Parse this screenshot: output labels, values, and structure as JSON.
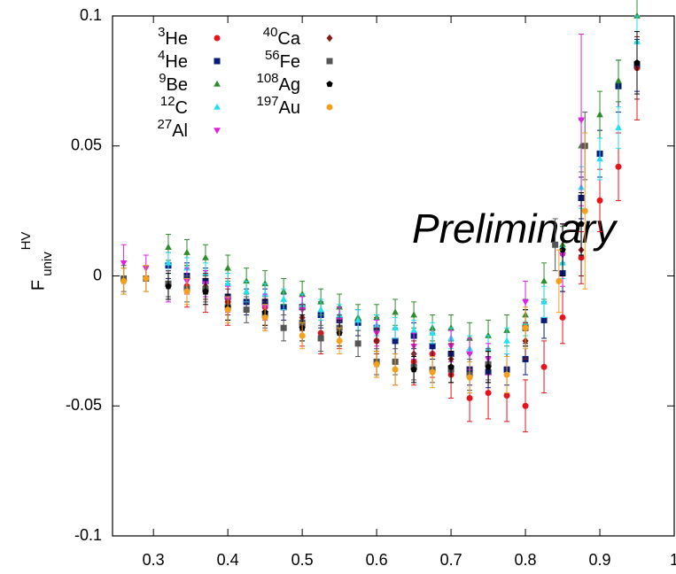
{
  "chart_data": {
    "type": "scatter",
    "ylabel": "F",
    "ylabel_sub": "univ",
    "ylabel_sup": "HV",
    "annotation": "Preliminary",
    "annotation_color": "#1aaa3a",
    "xlim": [
      0.245,
      1.0
    ],
    "ylim": [
      -0.1,
      0.1
    ],
    "xticks": [
      0.3,
      0.4,
      0.5,
      0.6,
      0.7,
      0.8,
      0.9,
      1
    ],
    "yticks": [
      -0.1,
      -0.05,
      0,
      0.05,
      0.1
    ],
    "grid": false,
    "legend": "top-left",
    "series": [
      {
        "name": "He",
        "mass_number": "3",
        "color": "#e8141c",
        "marker": "circle",
        "x": [
          0.345,
          0.37,
          0.4,
          0.45,
          0.5,
          0.525,
          0.55,
          0.6,
          0.625,
          0.65,
          0.675,
          0.7,
          0.725,
          0.75,
          0.775,
          0.8,
          0.825,
          0.85,
          0.875,
          0.9,
          0.925,
          0.95
        ],
        "values": [
          -0.004,
          -0.006,
          -0.01,
          -0.012,
          -0.019,
          -0.022,
          -0.02,
          -0.025,
          -0.033,
          -0.033,
          -0.03,
          -0.038,
          -0.047,
          -0.045,
          -0.046,
          -0.05,
          -0.035,
          -0.016,
          0.007,
          0.029,
          0.042,
          0.08
        ],
        "errors": [
          0.008,
          0.008,
          0.009,
          0.009,
          0.008,
          0.008,
          0.008,
          0.009,
          0.009,
          0.009,
          0.009,
          0.009,
          0.009,
          0.01,
          0.01,
          0.01,
          0.01,
          0.01,
          0.01,
          0.012,
          0.013,
          0.02
        ]
      },
      {
        "name": "He",
        "mass_number": "4",
        "color": "#0a1a7a",
        "marker": "square",
        "x": [
          0.32,
          0.345,
          0.37,
          0.4,
          0.425,
          0.45,
          0.475,
          0.5,
          0.525,
          0.55,
          0.575,
          0.6,
          0.625,
          0.65,
          0.675,
          0.7,
          0.725,
          0.75,
          0.775,
          0.8,
          0.825,
          0.85,
          0.875,
          0.9,
          0.925,
          0.95
        ],
        "values": [
          0.004,
          0.0,
          -0.002,
          -0.008,
          -0.01,
          -0.01,
          -0.012,
          -0.012,
          -0.015,
          -0.017,
          -0.018,
          -0.02,
          -0.025,
          -0.023,
          -0.027,
          -0.03,
          -0.036,
          -0.037,
          -0.036,
          -0.032,
          -0.017,
          0.001,
          0.03,
          0.047,
          0.073,
          0.081
        ],
        "errors": [
          0.005,
          0.005,
          0.005,
          0.005,
          0.005,
          0.005,
          0.005,
          0.005,
          0.005,
          0.005,
          0.005,
          0.005,
          0.005,
          0.005,
          0.005,
          0.005,
          0.006,
          0.006,
          0.006,
          0.006,
          0.007,
          0.007,
          0.008,
          0.009,
          0.01,
          0.01
        ]
      },
      {
        "name": "Be",
        "mass_number": "9",
        "color": "#2e8b2e",
        "marker": "triangle",
        "x": [
          0.32,
          0.345,
          0.37,
          0.4,
          0.425,
          0.45,
          0.475,
          0.5,
          0.525,
          0.55,
          0.575,
          0.6,
          0.625,
          0.65,
          0.675,
          0.7,
          0.725,
          0.75,
          0.775,
          0.8,
          0.825,
          0.85,
          0.875,
          0.9,
          0.925,
          0.95
        ],
        "values": [
          0.011,
          0.009,
          0.007,
          0.003,
          -0.002,
          -0.003,
          -0.006,
          -0.007,
          -0.01,
          -0.012,
          -0.016,
          -0.016,
          -0.014,
          -0.015,
          -0.02,
          -0.02,
          -0.024,
          -0.023,
          -0.021,
          -0.015,
          -0.002,
          0.012,
          0.05,
          0.062,
          0.075,
          0.1
        ],
        "errors": [
          0.005,
          0.005,
          0.005,
          0.005,
          0.005,
          0.005,
          0.005,
          0.005,
          0.005,
          0.005,
          0.005,
          0.005,
          0.005,
          0.005,
          0.005,
          0.005,
          0.006,
          0.006,
          0.006,
          0.006,
          0.007,
          0.007,
          0.01,
          0.009,
          0.008,
          0.01
        ]
      },
      {
        "name": "C",
        "mass_number": "12",
        "color": "#22e0f0",
        "marker": "triangle",
        "x": [
          0.32,
          0.345,
          0.37,
          0.4,
          0.425,
          0.45,
          0.475,
          0.5,
          0.525,
          0.55,
          0.575,
          0.6,
          0.625,
          0.65,
          0.675,
          0.7,
          0.725,
          0.75,
          0.775,
          0.8,
          0.825,
          0.85,
          0.875,
          0.9,
          0.925,
          0.95
        ],
        "values": [
          0.005,
          0.003,
          0.001,
          -0.003,
          -0.006,
          -0.007,
          -0.009,
          -0.011,
          -0.013,
          -0.015,
          -0.017,
          -0.019,
          -0.02,
          -0.021,
          -0.022,
          -0.024,
          -0.028,
          -0.028,
          -0.025,
          -0.018,
          -0.01,
          0.005,
          0.034,
          0.045,
          0.057,
          0.09
        ],
        "errors": [
          0.004,
          0.004,
          0.004,
          0.004,
          0.004,
          0.004,
          0.004,
          0.004,
          0.004,
          0.004,
          0.004,
          0.004,
          0.004,
          0.004,
          0.004,
          0.004,
          0.005,
          0.005,
          0.005,
          0.005,
          0.006,
          0.006,
          0.008,
          0.008,
          0.008,
          0.01
        ]
      },
      {
        "name": "Al",
        "mass_number": "27",
        "color": "#e01ee8",
        "marker": "triangle-down",
        "x": [
          0.26,
          0.29,
          0.32,
          0.345,
          0.37,
          0.4,
          0.45,
          0.5,
          0.55,
          0.6,
          0.65,
          0.7,
          0.725,
          0.75,
          0.8,
          0.85,
          0.875
        ],
        "values": [
          0.005,
          0.003,
          -0.004,
          -0.002,
          -0.003,
          -0.009,
          -0.012,
          -0.013,
          -0.017,
          -0.022,
          -0.027,
          -0.027,
          -0.03,
          -0.032,
          -0.01,
          0.008,
          0.06
        ],
        "errors": [
          0.007,
          0.005,
          0.006,
          0.005,
          0.005,
          0.005,
          0.005,
          0.005,
          0.005,
          0.005,
          0.005,
          0.006,
          0.006,
          0.006,
          0.008,
          0.012,
          0.033
        ]
      },
      {
        "name": "Ca",
        "mass_number": "40",
        "color": "#8b1a1a",
        "marker": "diamond",
        "x": [
          0.32,
          0.37,
          0.4,
          0.45,
          0.5,
          0.55,
          0.6,
          0.65,
          0.7,
          0.75,
          0.8,
          0.875,
          0.95
        ],
        "values": [
          -0.003,
          -0.004,
          -0.01,
          -0.014,
          -0.016,
          -0.02,
          -0.025,
          -0.03,
          -0.032,
          -0.035,
          -0.025,
          0.01,
          0.08
        ],
        "errors": [
          0.005,
          0.005,
          0.005,
          0.005,
          0.005,
          0.005,
          0.005,
          0.005,
          0.006,
          0.006,
          0.007,
          0.01,
          0.012
        ]
      },
      {
        "name": "Fe",
        "mass_number": "56",
        "color": "#555555",
        "marker": "square",
        "x": [
          0.26,
          0.29,
          0.32,
          0.345,
          0.37,
          0.4,
          0.425,
          0.45,
          0.475,
          0.5,
          0.525,
          0.55,
          0.575,
          0.6,
          0.625,
          0.65,
          0.675,
          0.7,
          0.725,
          0.75,
          0.8,
          0.84,
          0.88
        ],
        "values": [
          -0.001,
          -0.001,
          -0.003,
          -0.005,
          -0.005,
          -0.012,
          -0.013,
          -0.015,
          -0.02,
          -0.018,
          -0.024,
          -0.02,
          -0.026,
          -0.033,
          -0.033,
          -0.035,
          -0.036,
          -0.036,
          -0.038,
          -0.034,
          -0.02,
          0.012,
          0.05
        ],
        "errors": [
          0.005,
          0.005,
          0.005,
          0.005,
          0.005,
          0.005,
          0.005,
          0.005,
          0.005,
          0.005,
          0.005,
          0.005,
          0.005,
          0.005,
          0.005,
          0.005,
          0.005,
          0.005,
          0.006,
          0.006,
          0.007,
          0.01,
          0.013
        ]
      },
      {
        "name": "Ag",
        "mass_number": "108",
        "color": "#000000",
        "marker": "pentagon",
        "x": [
          0.26,
          0.32,
          0.37,
          0.4,
          0.45,
          0.5,
          0.55,
          0.6,
          0.65,
          0.7,
          0.75,
          0.8,
          0.85,
          0.875,
          0.95
        ],
        "values": [
          -0.002,
          -0.004,
          -0.006,
          -0.012,
          -0.014,
          -0.02,
          -0.022,
          -0.034,
          -0.036,
          -0.035,
          -0.035,
          -0.02,
          0.01,
          0.02,
          0.082
        ],
        "errors": [
          0.005,
          0.005,
          0.005,
          0.005,
          0.005,
          0.005,
          0.005,
          0.005,
          0.005,
          0.006,
          0.006,
          0.007,
          0.01,
          0.012,
          0.012
        ]
      },
      {
        "name": "Au",
        "mass_number": "197",
        "color": "#f5a01a",
        "marker": "circle",
        "x": [
          0.26,
          0.29,
          0.345,
          0.4,
          0.45,
          0.5,
          0.55,
          0.6,
          0.625,
          0.675,
          0.725,
          0.775,
          0.8,
          0.845,
          0.88
        ],
        "values": [
          -0.002,
          -0.001,
          -0.006,
          -0.013,
          -0.016,
          -0.023,
          -0.025,
          -0.034,
          -0.036,
          -0.037,
          -0.039,
          -0.038,
          -0.02,
          -0.002,
          0.025
        ],
        "errors": [
          0.005,
          0.005,
          0.005,
          0.005,
          0.005,
          0.005,
          0.005,
          0.005,
          0.006,
          0.006,
          0.006,
          0.007,
          0.008,
          0.012,
          0.03
        ]
      }
    ]
  }
}
